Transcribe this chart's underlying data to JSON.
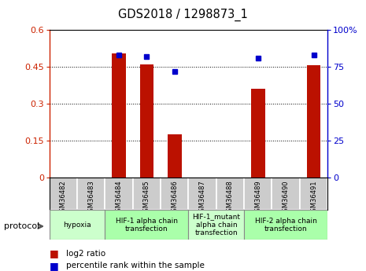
{
  "title": "GDS2018 / 1298873_1",
  "samples": [
    "GSM36482",
    "GSM36483",
    "GSM36484",
    "GSM36485",
    "GSM36486",
    "GSM36487",
    "GSM36488",
    "GSM36489",
    "GSM36490",
    "GSM36491"
  ],
  "log2_ratio": [
    0.0,
    0.0,
    0.505,
    0.46,
    0.175,
    0.0,
    0.0,
    0.36,
    0.0,
    0.455
  ],
  "percentile_rank": [
    null,
    null,
    83,
    82,
    72,
    null,
    null,
    81,
    null,
    83
  ],
  "left_yaxis": {
    "min": 0,
    "max": 0.6,
    "ticks": [
      0,
      0.15,
      0.3,
      0.45,
      0.6
    ],
    "label_color": "#cc2200"
  },
  "right_yaxis": {
    "min": 0,
    "max": 100,
    "ticks": [
      0,
      25,
      50,
      75,
      100
    ],
    "label_color": "#0000cc"
  },
  "bar_color": "#bb1100",
  "dot_color": "#0000cc",
  "protocol_groups": [
    {
      "label": "hypoxia",
      "start": 0,
      "end": 2,
      "color": "#ccffcc"
    },
    {
      "label": "HIF-1 alpha chain\ntransfection",
      "start": 2,
      "end": 5,
      "color": "#aaffaa"
    },
    {
      "label": "HIF-1_mutant\nalpha chain\ntransfection",
      "start": 5,
      "end": 7,
      "color": "#ccffcc"
    },
    {
      "label": "HIF-2 alpha chain\ntransfection",
      "start": 7,
      "end": 10,
      "color": "#aaffaa"
    }
  ],
  "legend_log2": "log2 ratio",
  "legend_pct": "percentile rank within the sample",
  "protocol_label": "protocol",
  "bar_width": 0.5,
  "dotted_line_color": "#000000",
  "sample_bg_color": "#cccccc",
  "plot_bg_color": "#ffffff"
}
